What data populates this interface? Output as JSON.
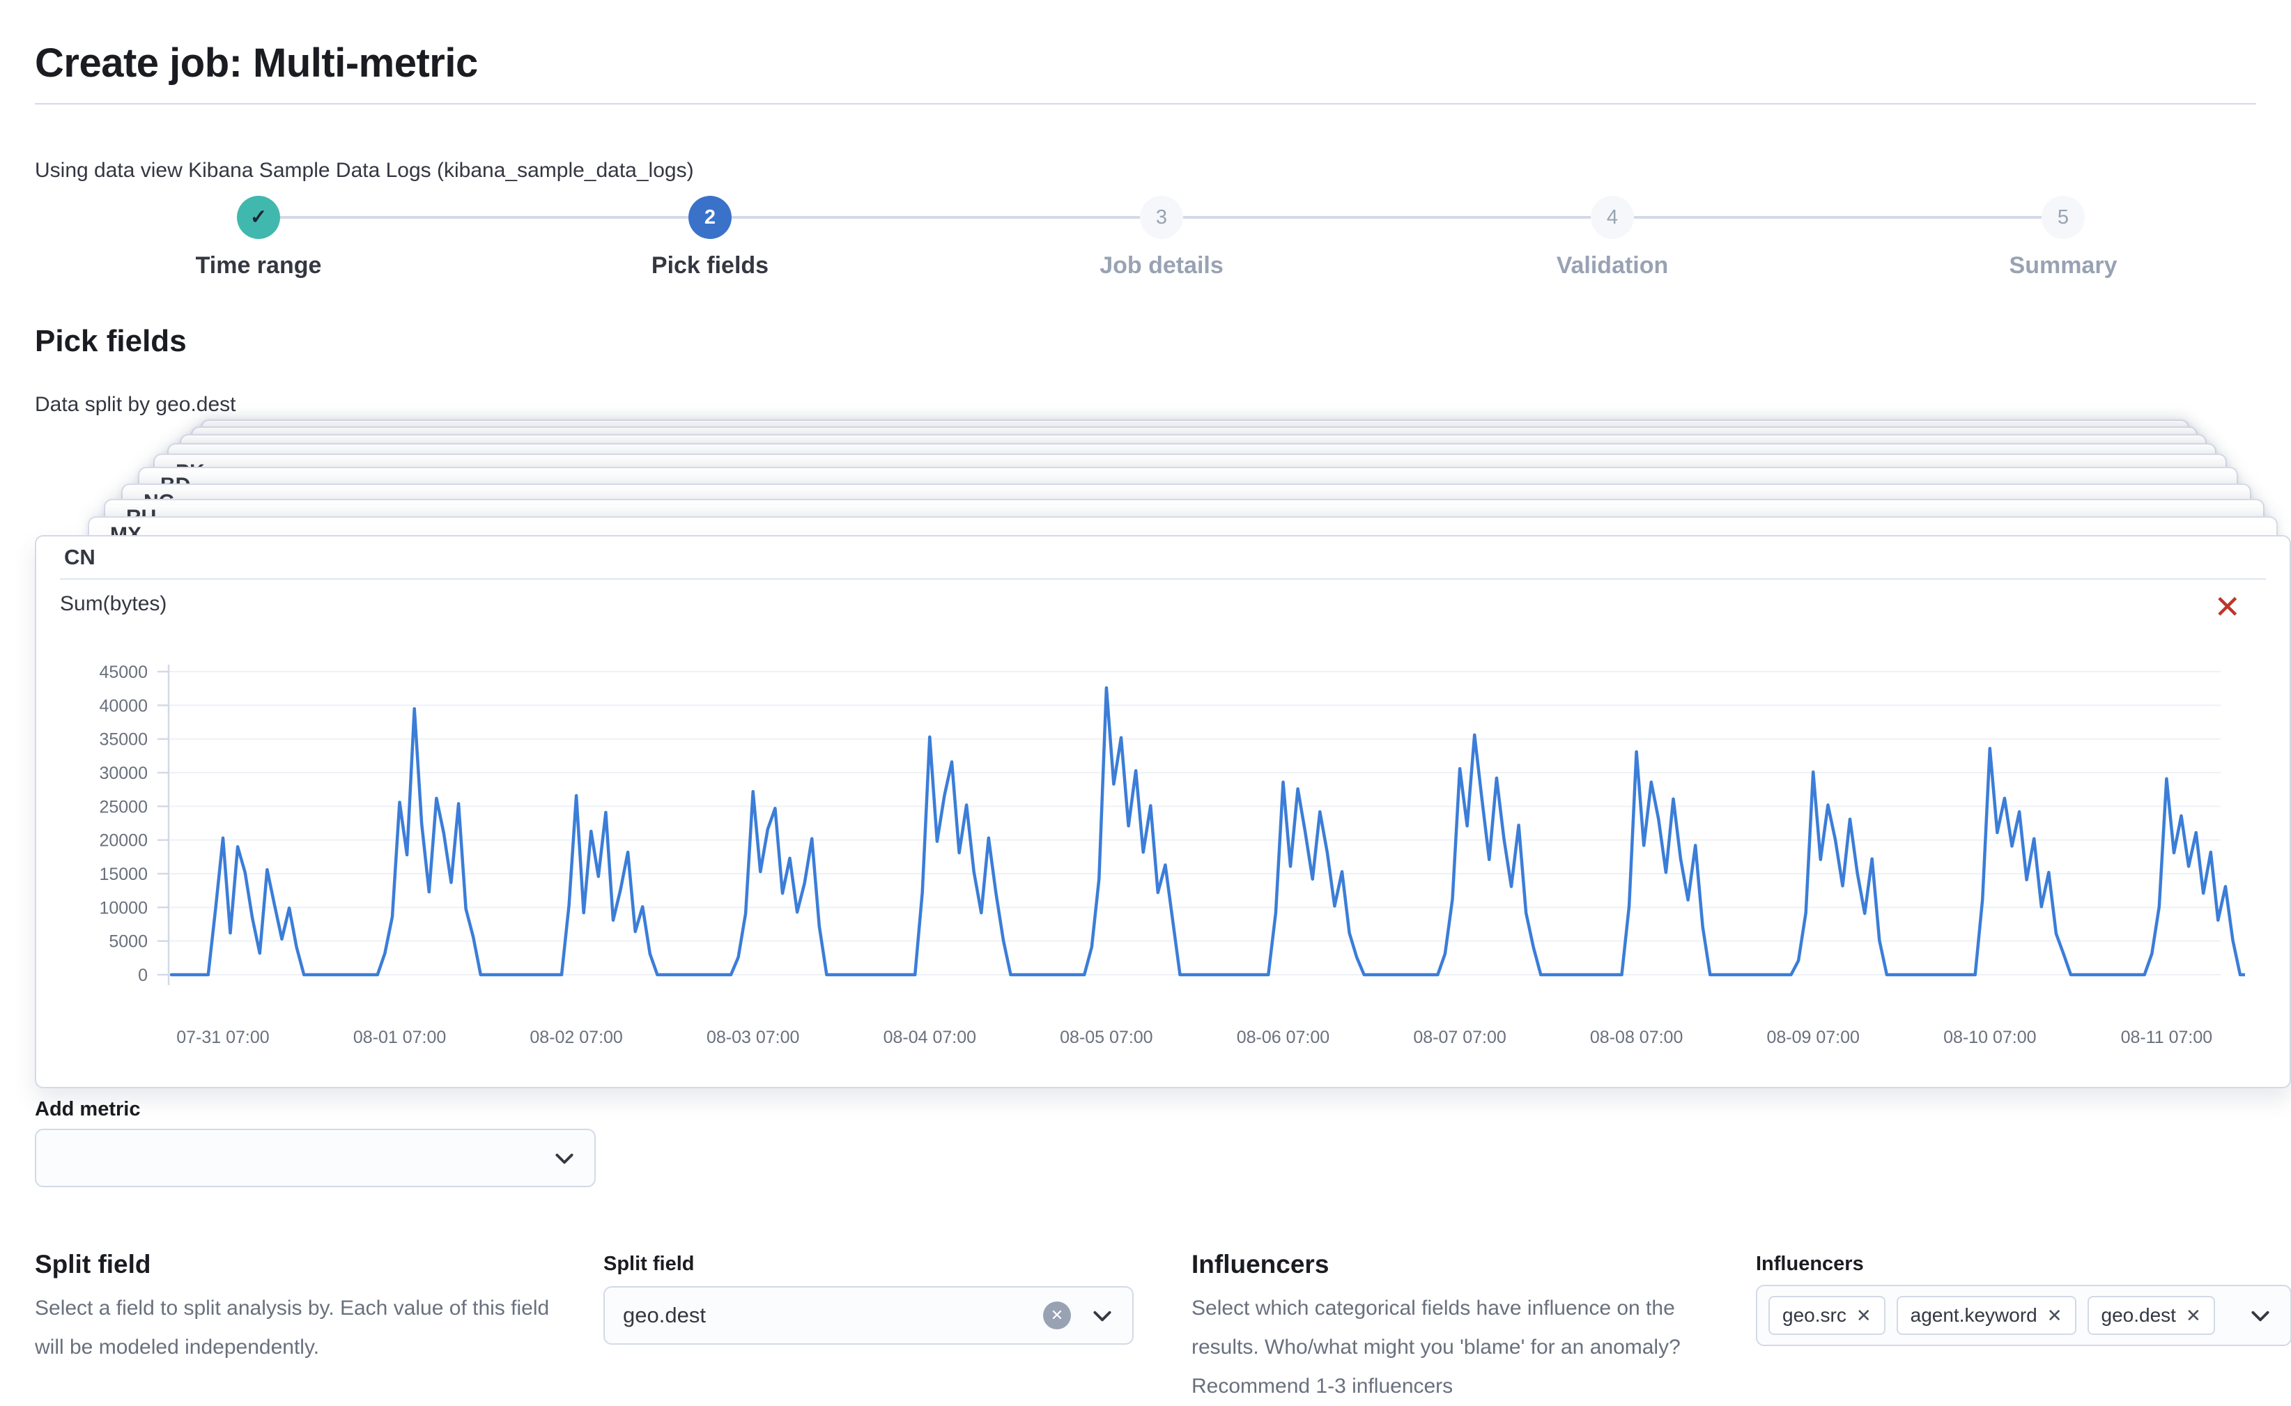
{
  "page": {
    "title": "Create job: Multi-metric"
  },
  "data_view_line": "Using data view Kibana Sample Data Logs (kibana_sample_data_logs)",
  "stepper": {
    "steps": [
      {
        "num": "✓",
        "label": "Time range",
        "state": "complete"
      },
      {
        "num": "2",
        "label": "Pick fields",
        "state": "active"
      },
      {
        "num": "3",
        "label": "Job details",
        "state": "incomplete"
      },
      {
        "num": "4",
        "label": "Validation",
        "state": "incomplete"
      },
      {
        "num": "5",
        "label": "Summary",
        "state": "incomplete"
      }
    ]
  },
  "section": {
    "heading": "Pick fields",
    "split_note": "Data split by geo.dest"
  },
  "cards": {
    "back_labels": [
      "",
      "",
      "",
      "",
      "PK",
      "BD",
      "NG",
      "RU",
      "MX"
    ],
    "front_label": "CN",
    "metric_label": "Sum(bytes)",
    "close_icon": "✕"
  },
  "chart_data": {
    "type": "line",
    "title": "Sum(bytes)",
    "split_value": "CN",
    "legend": "none",
    "grid": "horizontal-faint",
    "x_start_label": "07-31 00:00",
    "bucket_interval": "1h",
    "ylim": [
      0,
      47000
    ],
    "y_ticks": [
      0,
      5000,
      10000,
      15000,
      20000,
      25000,
      30000,
      35000,
      40000,
      45000
    ],
    "x_tick_labels": [
      "07-31 07:00",
      "08-01 07:00",
      "08-02 07:00",
      "08-03 07:00",
      "08-04 07:00",
      "08-05 07:00",
      "08-06 07:00",
      "08-07 07:00",
      "08-08 07:00",
      "08-09 07:00",
      "08-10 07:00",
      "08-11 07:00"
    ],
    "x_tick_hour_offset": 7,
    "line_color": "#3b7dd8",
    "values_by_day": [
      [
        0,
        0,
        0,
        0,
        0,
        0,
        9800,
        20300,
        6200,
        19000,
        15200,
        8400,
        3200,
        15600,
        10400,
        5300,
        9900,
        4100,
        0,
        0,
        0,
        0,
        0,
        0
      ],
      [
        0,
        0,
        0,
        0,
        0,
        3200,
        8600,
        25600,
        17800,
        39500,
        22400,
        12300,
        26200,
        21000,
        13700,
        25400,
        9800,
        5600,
        0,
        0,
        0,
        0,
        0,
        0
      ],
      [
        0,
        0,
        0,
        0,
        0,
        0,
        10300,
        26600,
        9200,
        21300,
        14600,
        24100,
        8100,
        12600,
        18200,
        6400,
        10100,
        3100,
        0,
        0,
        0,
        0,
        0,
        0
      ],
      [
        0,
        0,
        0,
        0,
        0,
        2600,
        9100,
        27200,
        15300,
        21600,
        24700,
        12100,
        17300,
        9300,
        13600,
        20200,
        7200,
        0,
        0,
        0,
        0,
        0,
        0,
        0
      ],
      [
        0,
        0,
        0,
        0,
        0,
        0,
        12200,
        35300,
        19800,
        26600,
        31600,
        18100,
        25200,
        15300,
        9200,
        20300,
        12100,
        5100,
        0,
        0,
        0,
        0,
        0,
        0
      ],
      [
        0,
        0,
        0,
        0,
        0,
        4100,
        14200,
        42600,
        28300,
        35200,
        22100,
        30300,
        18200,
        25100,
        12200,
        16300,
        8100,
        0,
        0,
        0,
        0,
        0,
        0,
        0
      ],
      [
        0,
        0,
        0,
        0,
        0,
        0,
        9200,
        28600,
        16100,
        27600,
        21200,
        14200,
        24200,
        18100,
        10200,
        15300,
        6200,
        2600,
        0,
        0,
        0,
        0,
        0,
        0
      ],
      [
        0,
        0,
        0,
        0,
        0,
        3100,
        11200,
        30600,
        22100,
        35600,
        26200,
        17100,
        29200,
        20200,
        13100,
        22200,
        9200,
        4100,
        0,
        0,
        0,
        0,
        0,
        0
      ],
      [
        0,
        0,
        0,
        0,
        0,
        0,
        10200,
        33100,
        19200,
        28600,
        23100,
        15200,
        26100,
        17200,
        11100,
        19200,
        7100,
        0,
        0,
        0,
        0,
        0,
        0,
        0
      ],
      [
        0,
        0,
        0,
        0,
        0,
        2100,
        9200,
        30100,
        17100,
        25200,
        20100,
        13200,
        23100,
        15100,
        9100,
        17200,
        5100,
        0,
        0,
        0,
        0,
        0,
        0,
        0
      ],
      [
        0,
        0,
        0,
        0,
        0,
        0,
        11100,
        33600,
        21100,
        26200,
        19100,
        24200,
        14100,
        20200,
        10100,
        15200,
        6100,
        3100,
        0,
        0,
        0,
        0,
        0,
        0
      ],
      [
        0,
        0,
        0,
        0,
        0,
        3100,
        10100,
        29100,
        18100,
        23600,
        16100,
        21100,
        12100,
        18200,
        8100,
        13100,
        5100,
        0,
        0
      ]
    ]
  },
  "add_metric": {
    "label": "Add metric"
  },
  "split_field": {
    "heading": "Split field",
    "description": "Select a field to split analysis by. Each value of this field will be modeled independently.",
    "form_label": "Split field",
    "value": "geo.dest",
    "clear_icon": "✕"
  },
  "influencers": {
    "heading": "Influencers",
    "description": "Select which categorical fields have influence on the results. Who/what might you 'blame' for an anomaly? Recommend 1-3 influencers",
    "form_label": "Influencers",
    "badges": [
      "geo.src",
      "agent.keyword",
      "geo.dest"
    ],
    "remove_icon": "✕"
  },
  "colors": {
    "primary": "#3a72c9",
    "success": "#40b8ae",
    "danger": "#bd362b",
    "chart_line": "#3b7dd8",
    "border": "#d3dae6",
    "text": "#343741",
    "subdued_text": "#69707d",
    "disabled_text": "#98a2b3"
  }
}
